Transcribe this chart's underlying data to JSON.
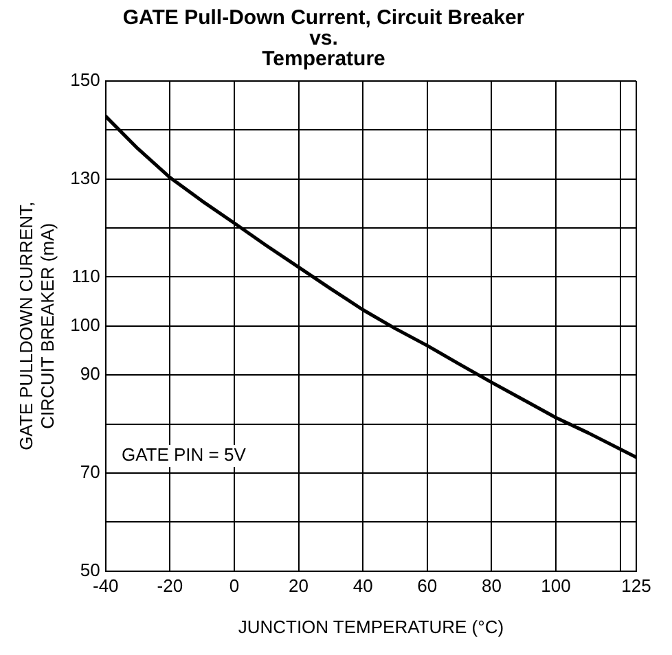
{
  "chart_data": {
    "type": "line",
    "title": "GATE Pull-Down Current, Circuit Breaker\nvs.\nTemperature",
    "xlabel": "JUNCTION TEMPERATURE (°C)",
    "ylabel": "GATE PULLDOWN CURRENT,\nCIRCUIT BREAKER (mA)",
    "annotations": [
      "GATE PIN = 5V"
    ],
    "series": [
      {
        "color": "#000000",
        "x": [
          -40,
          -30,
          -20,
          -10,
          0,
          10,
          20,
          30,
          40,
          50,
          60,
          70,
          80,
          90,
          100,
          110,
          125
        ],
        "values": [
          142.8,
          136.2,
          130.3,
          125.5,
          121,
          116.4,
          112,
          107.6,
          103.3,
          99.5,
          96,
          92.2,
          88.5,
          84.9,
          81.3,
          78.2,
          73.2
        ]
      }
    ],
    "xlim": [
      -40,
      125
    ],
    "xticks": [
      -40,
      -20,
      0,
      20,
      40,
      60,
      80,
      100,
      {
        "value": 120,
        "label": null
      },
      125
    ],
    "ylim": [
      50,
      150
    ],
    "yticks": [
      50,
      {
        "value": 60,
        "label": null
      },
      70,
      {
        "value": 80,
        "label": null
      },
      90,
      100,
      110,
      {
        "value": 120,
        "label": null
      },
      130,
      {
        "value": 140,
        "label": null
      },
      150
    ],
    "grid": true,
    "legend": false,
    "marker": "none",
    "line_style": "solid"
  }
}
